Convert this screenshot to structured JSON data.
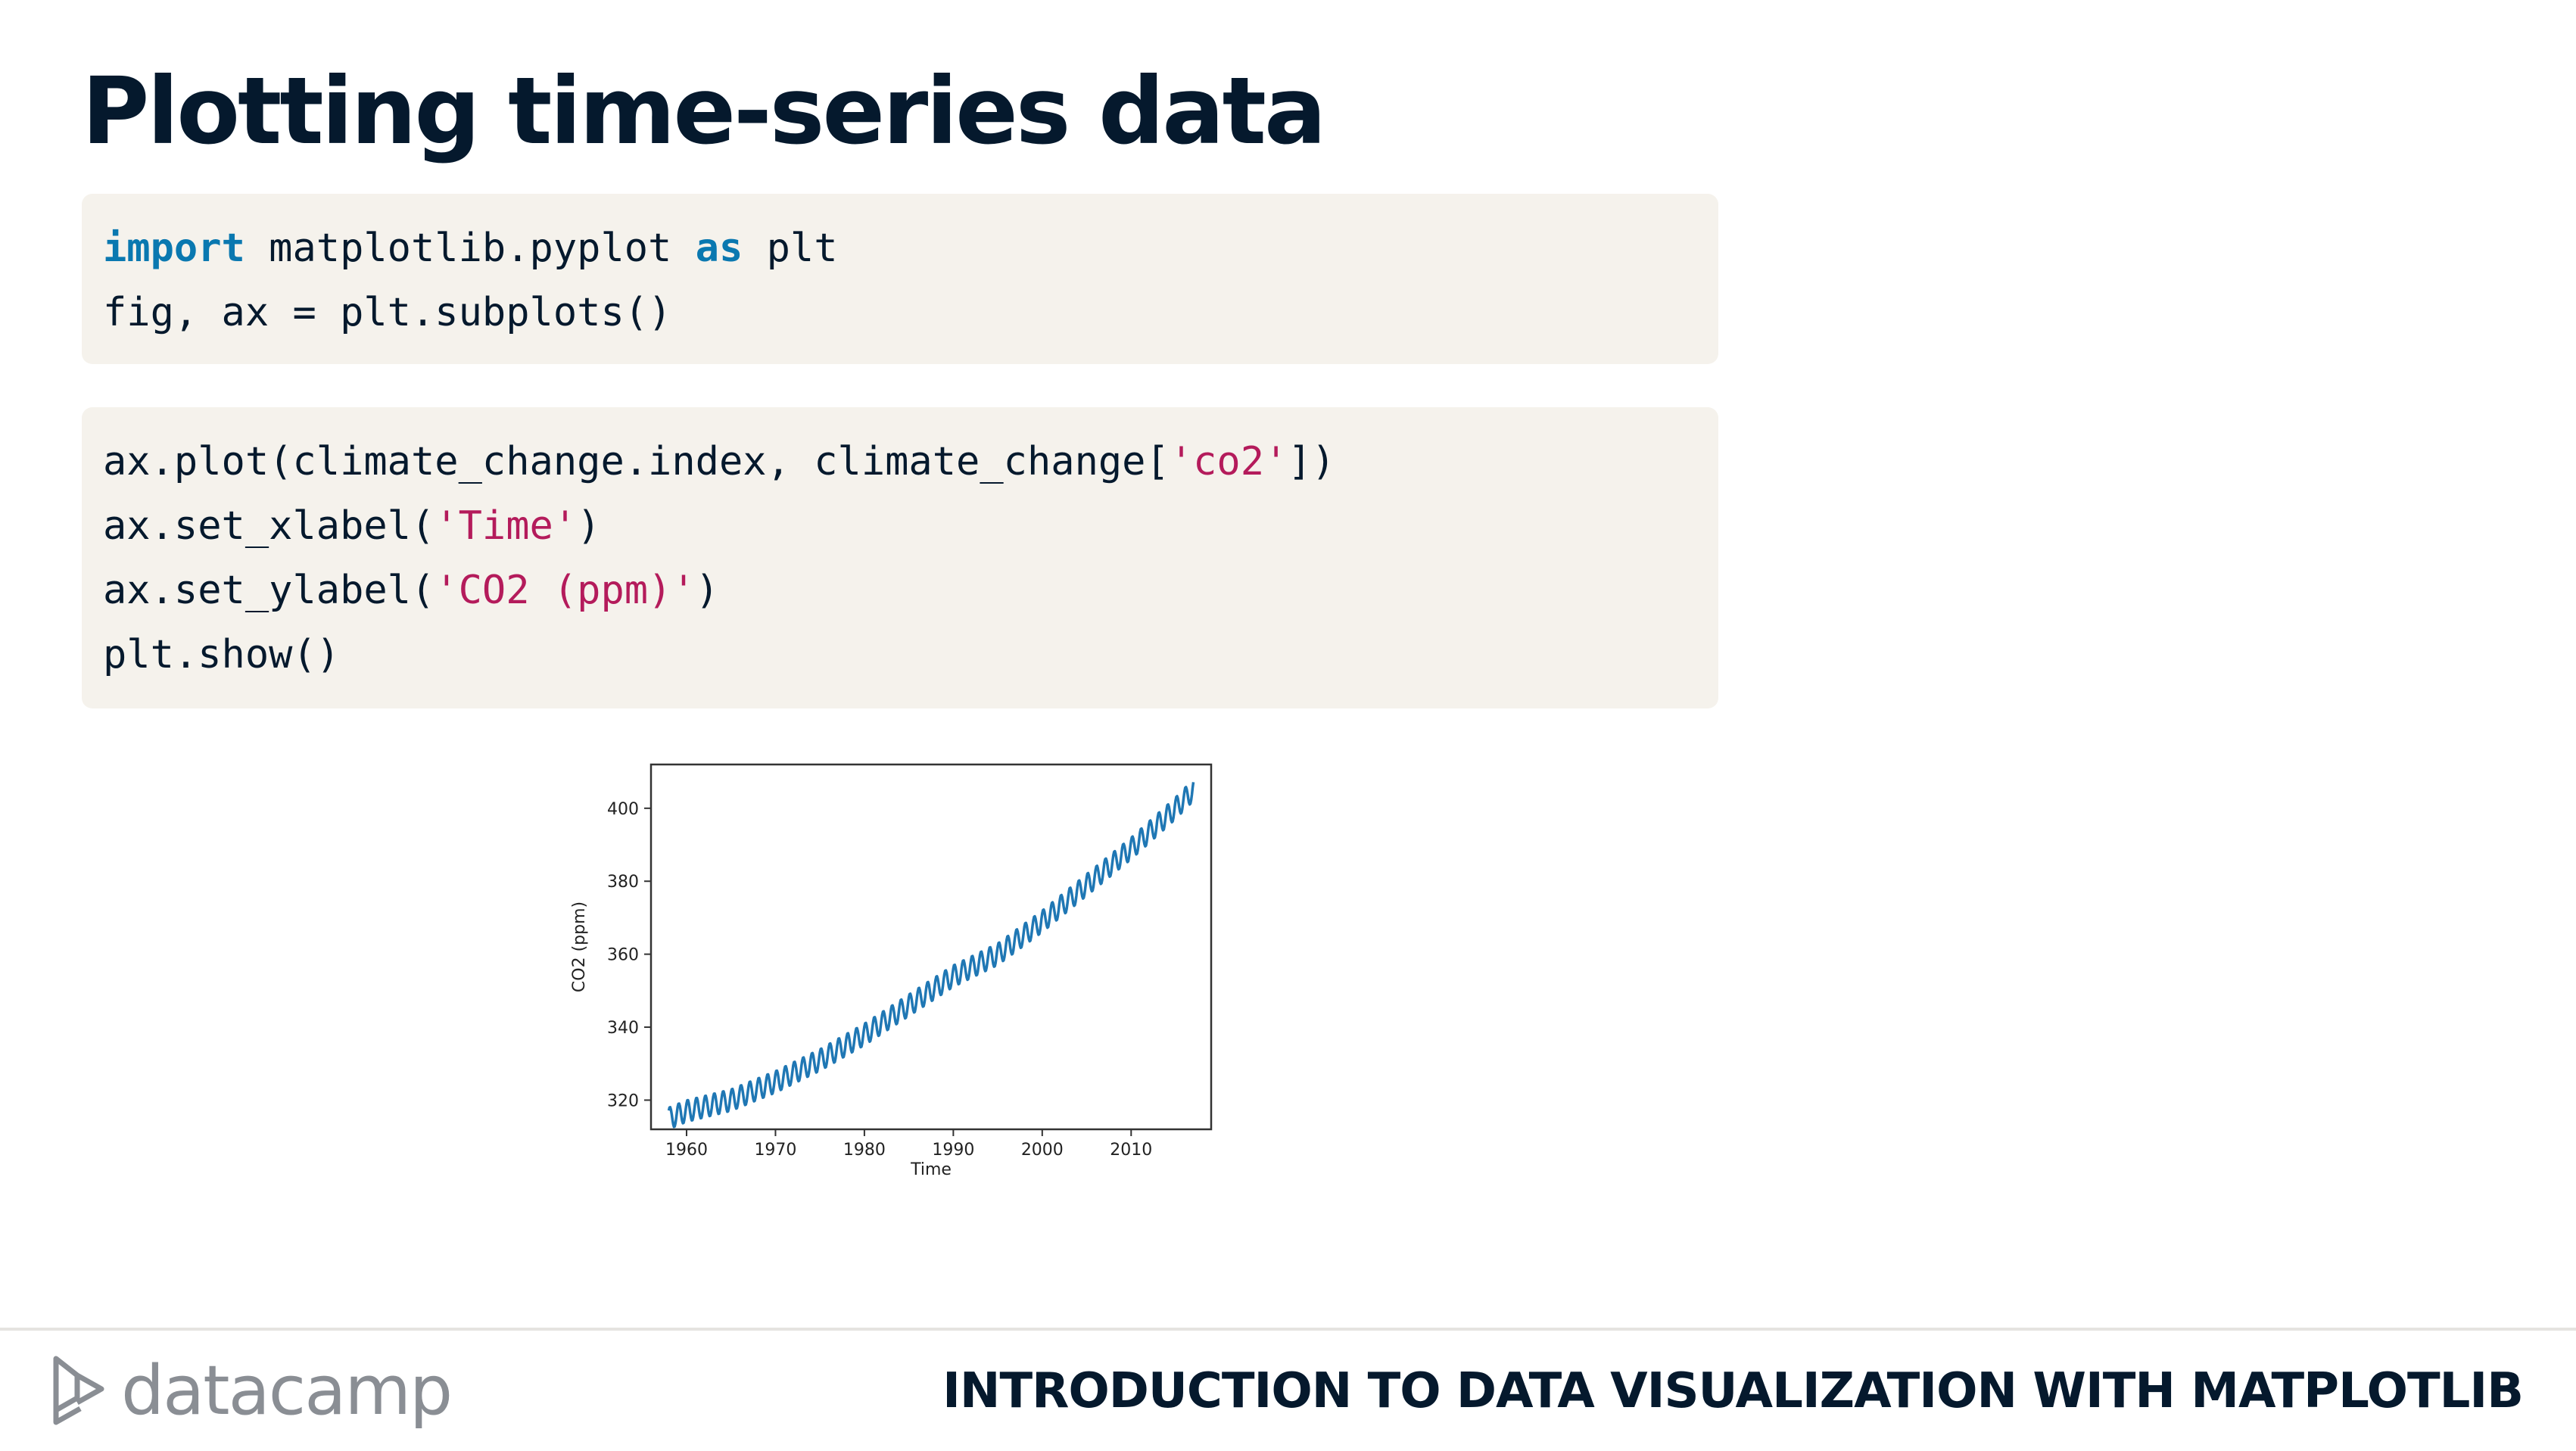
{
  "slide": {
    "title": "Plotting time-series data"
  },
  "code_block_1": {
    "lines": [
      [
        {
          "t": "import",
          "c": "kw"
        },
        {
          "t": " matplotlib.pyplot "
        },
        {
          "t": "as",
          "c": "kw"
        },
        {
          "t": " plt"
        }
      ],
      [
        {
          "t": "fig, ax = plt.subplots()"
        }
      ]
    ]
  },
  "code_block_2": {
    "lines": [
      [
        {
          "t": "ax.plot(climate_change.index, climate_change["
        },
        {
          "t": "'co2'",
          "c": "str"
        },
        {
          "t": "])"
        }
      ],
      [
        {
          "t": "ax.set_xlabel("
        },
        {
          "t": "'Time'",
          "c": "str"
        },
        {
          "t": ")"
        }
      ],
      [
        {
          "t": "ax.set_ylabel("
        },
        {
          "t": "'CO2 (ppm)'",
          "c": "str"
        },
        {
          "t": ")"
        }
      ],
      [
        {
          "t": "plt.show()"
        }
      ]
    ]
  },
  "chart_data": {
    "type": "line",
    "title": "",
    "xlabel": "Time",
    "ylabel": "CO2 (ppm)",
    "xlim": [
      1956,
      2019
    ],
    "ylim": [
      312,
      412
    ],
    "xticks": [
      1960,
      1970,
      1980,
      1990,
      2000,
      2010
    ],
    "yticks": [
      320,
      340,
      360,
      380,
      400
    ],
    "grid": false,
    "line_color": "#1f77b4",
    "series": [
      {
        "x": [
          1958,
          1960,
          1965,
          1970,
          1975,
          1980,
          1985,
          1990,
          1995,
          2000,
          2005,
          2010,
          2015,
          2017
        ],
        "values": [
          315,
          317,
          320,
          325,
          331,
          338,
          346,
          354,
          360,
          369,
          379,
          389,
          400,
          405
        ],
        "seasonal_amplitude_ppm": 3
      }
    ]
  },
  "footer": {
    "logo_text": "datacamp",
    "course_title": "INTRODUCTION TO DATA VISUALIZATION WITH MATPLOTLIB"
  },
  "colors": {
    "title": "#05192d",
    "code_bg": "#f5f2ec",
    "keyword": "#0a78b0",
    "string": "#b41b5b",
    "logo": "#8a8e94"
  }
}
